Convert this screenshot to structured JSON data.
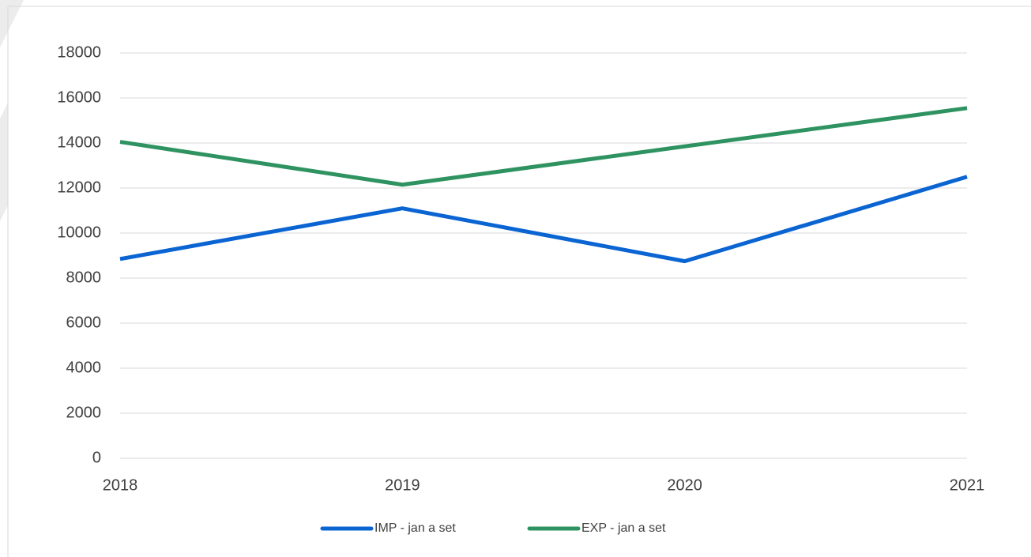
{
  "chart_data": {
    "type": "line",
    "categories": [
      "2018",
      "2019",
      "2020",
      "2021"
    ],
    "series": [
      {
        "name": "IMP - jan a set",
        "color": "#0a64d2",
        "values": [
          8850,
          11100,
          8750,
          12500
        ]
      },
      {
        "name": "EXP - jan a set",
        "color": "#2e9360",
        "values": [
          14050,
          12150,
          13850,
          15550
        ]
      }
    ],
    "ylim": [
      0,
      18000
    ],
    "yticks": [
      0,
      2000,
      4000,
      6000,
      8000,
      10000,
      12000,
      14000,
      16000,
      18000
    ],
    "grid": true,
    "legend": "bottom"
  }
}
